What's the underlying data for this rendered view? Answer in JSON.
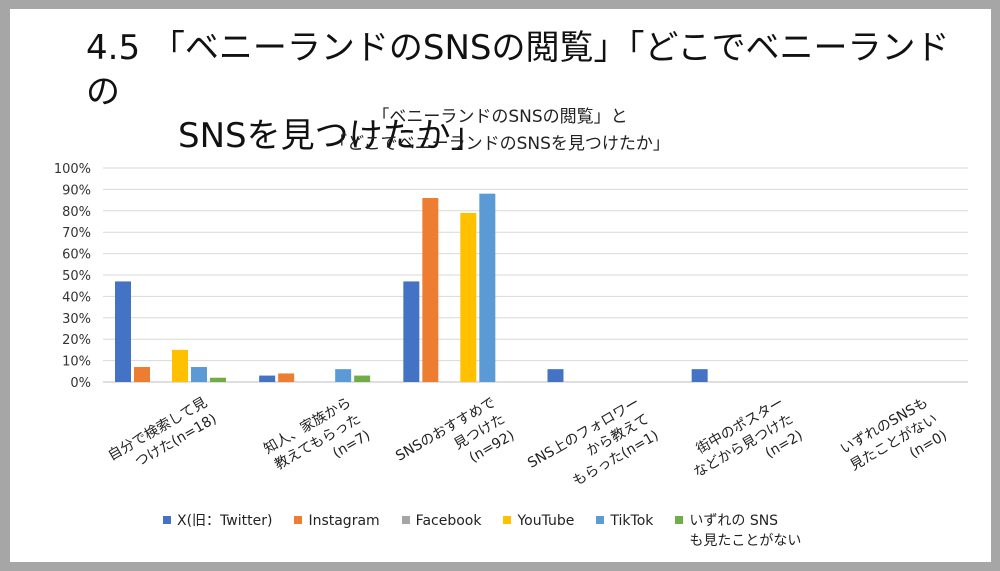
{
  "slide": {
    "title_line1": "4.5 「ベニーランドのSNSの閲覧」「どこでベニーランドの",
    "title_line2": "SNSを見つけたか」"
  },
  "chart_data": {
    "type": "bar",
    "title_line1": "「ベニーランドのSNSの閲覧」と",
    "title_line2": "「どこでベニーランドのSNSを見つけたか」",
    "categories": [
      "自分で検索して見\nつけた(n=18)",
      "知人、家族から\n教えてもらった\n(n=7)",
      "SNSのおすすめで\n見つけた\n(n=92)",
      "SNS上のフォロワー\nから教えて\nもらった(n=1)",
      "街中のポスター\nなどから見つけた\n(n=2)",
      "いずれのSNSも\n見たことがない\n(n=0)"
    ],
    "series": [
      {
        "name": "X(旧：Twitter)",
        "color": "#4472c4",
        "values": [
          47,
          3,
          47,
          6,
          6,
          0
        ]
      },
      {
        "name": "Instagram",
        "color": "#ed7d31",
        "values": [
          7,
          4,
          86,
          0,
          0,
          0
        ]
      },
      {
        "name": "Facebook",
        "color": "#a5a5a5",
        "values": [
          0,
          0,
          0,
          0,
          0,
          0
        ]
      },
      {
        "name": "YouTube",
        "color": "#ffc000",
        "values": [
          15,
          0,
          79,
          0,
          0,
          0
        ]
      },
      {
        "name": "TikTok",
        "color": "#5b9bd5",
        "values": [
          7,
          6,
          88,
          0,
          0,
          0
        ]
      },
      {
        "name": "いずれの SNS\nも見たことがない",
        "color": "#70ad47",
        "values": [
          2,
          3,
          0,
          0,
          0,
          0
        ]
      }
    ],
    "yticks": [
      "0%",
      "10%",
      "20%",
      "30%",
      "40%",
      "50%",
      "60%",
      "70%",
      "80%",
      "90%",
      "100%"
    ],
    "ylim": [
      0,
      100
    ],
    "grid": true,
    "legend_position": "bottom"
  }
}
